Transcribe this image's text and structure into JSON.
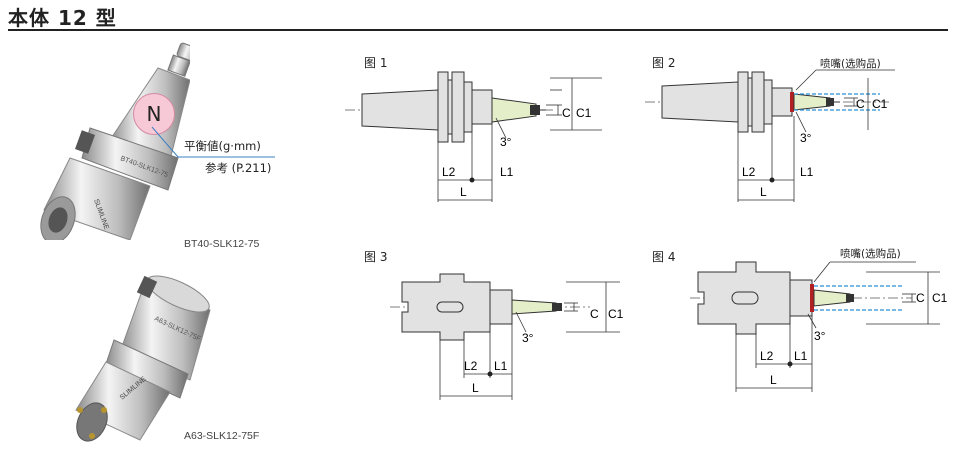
{
  "header": {
    "title": "本体 12 型"
  },
  "products": [
    {
      "caption": "BT40-SLK12-75",
      "engraving": "BT40-SLK12-75",
      "brand": "SLIMLINE"
    },
    {
      "caption": "A63-SLK12-75F",
      "engraving": "A63-SLK12-75F",
      "brand": "SLIMLINE"
    }
  ],
  "balance_note": {
    "badge": "N",
    "line1": "平衡値(g·mm)",
    "line2": "参考 (P.211)"
  },
  "figures": [
    {
      "label": "图 1"
    },
    {
      "label": "图 2",
      "nozzle": "喷嘴(选购品)"
    },
    {
      "label": "图 3"
    },
    {
      "label": "图 4",
      "nozzle": "喷嘴(选购品)"
    }
  ],
  "dimensions": {
    "L": "L",
    "L1": "L1",
    "L2": "L2",
    "C": "C",
    "C1": "C1",
    "angle": "3°"
  },
  "colors": {
    "body": "#e2e2e2",
    "outline": "#333333",
    "collet": "#e4efc9",
    "nozzle_red": "#b22222",
    "coolant_blue": "#2a8fd6",
    "badge_fill": "#f7c9d6",
    "leader": "#3a7fc4"
  }
}
